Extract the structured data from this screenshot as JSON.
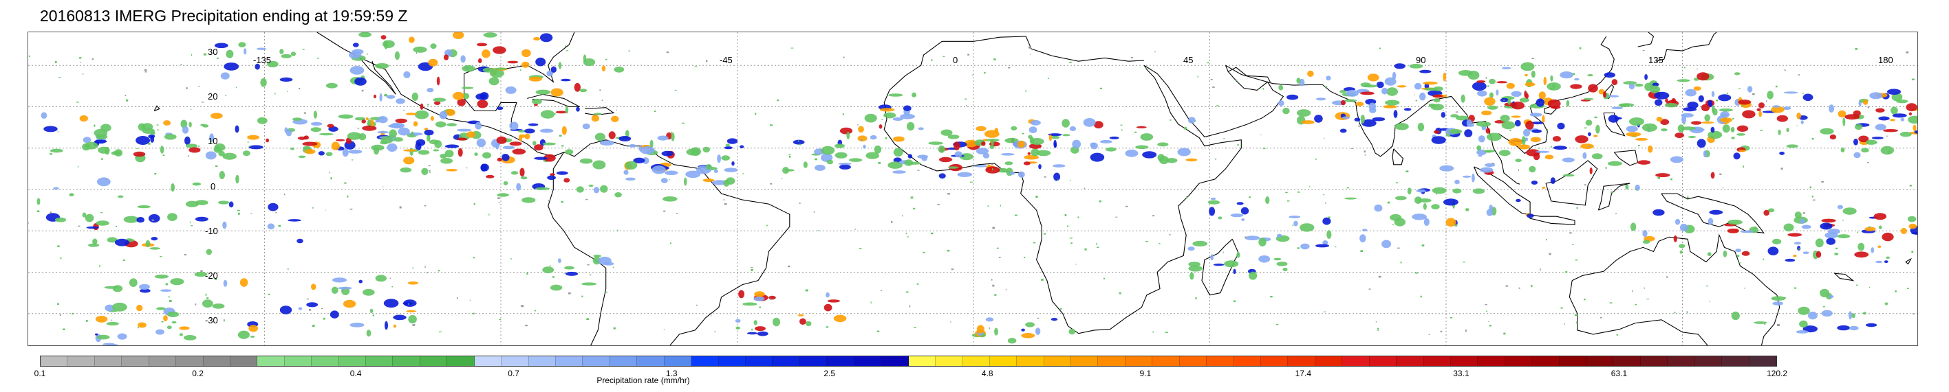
{
  "title": "20160813 IMERG Precipitation ending at 19:59:59 Z",
  "map": {
    "lon_labels": [
      "-135",
      "-45",
      "0",
      "45",
      "90",
      "135",
      "180"
    ],
    "lat_labels": [
      "30",
      "20",
      "10",
      "0",
      "-10",
      "-20",
      "-30"
    ],
    "grid_color": "#9a9a9a",
    "coast_color": "#000000"
  },
  "colorbar": {
    "label": "Precipitation rate (mm/hr)",
    "ticks": [
      "0.1",
      "0.2",
      "0.4",
      "0.7",
      "1.3",
      "2.5",
      "4.8",
      "9.1",
      "17.4",
      "33.1",
      "63.1",
      "120.2"
    ],
    "colors": [
      "#bdbdbd",
      "#b4b4b4",
      "#ababab",
      "#a3a3a3",
      "#9b9b9b",
      "#939393",
      "#8b8b8b",
      "#848484",
      "#8fe08f",
      "#84d984",
      "#79d279",
      "#6ecb6e",
      "#63c463",
      "#58bd58",
      "#4db64d",
      "#44af44",
      "#c6d6fb",
      "#b6cbfa",
      "#a6c0f8",
      "#96b5f6",
      "#86aaf4",
      "#769ff2",
      "#6694f0",
      "#5689ee",
      "#0a3cff",
      "#0a34f5",
      "#0a2ceb",
      "#0a24e1",
      "#0a1cd7",
      "#0a14cd",
      "#0a0cc3",
      "#0a04b9",
      "#fff94d",
      "#ffee33",
      "#ffe11a",
      "#ffd400",
      "#ffc200",
      "#ffb000",
      "#ff9e00",
      "#ff8c00",
      "#ff7f00",
      "#ff7300",
      "#ff6600",
      "#ff5900",
      "#ff4c00",
      "#f74000",
      "#ef3300",
      "#e72600",
      "#e31a1c",
      "#d91518",
      "#cf1014",
      "#c50b10",
      "#bb060c",
      "#b10108",
      "#a70004",
      "#9d0000",
      "#8b0000",
      "#820608",
      "#790c10",
      "#701218",
      "#671820",
      "#5e1e28",
      "#552430",
      "#4c2a38"
    ]
  }
}
